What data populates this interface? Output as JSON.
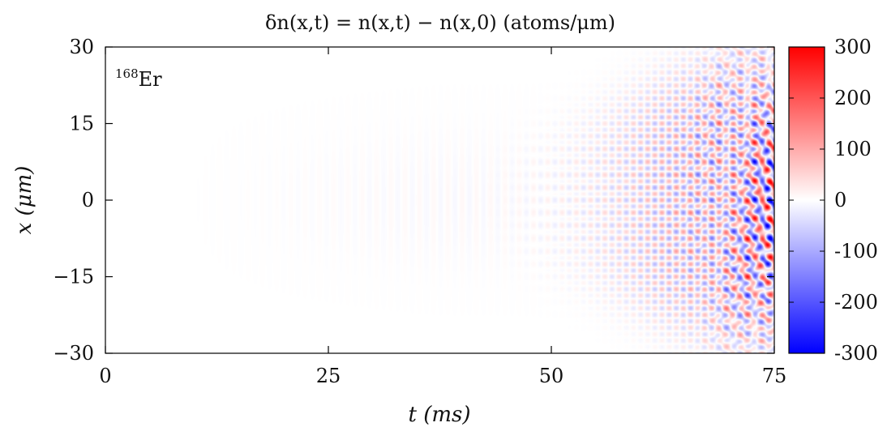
{
  "chart_data": {
    "type": "heatmap",
    "title": "δn(x,t) = n(x,t) − n(x,0)   (atoms/μm)",
    "xlabel": "t (ms)",
    "ylabel": "x (μm)",
    "annotation": "168Er",
    "annotation_parts": {
      "sup": "168",
      "base": "Er"
    },
    "xlim": [
      0,
      75
    ],
    "ylim": [
      -30,
      30
    ],
    "xticks": [
      0,
      25,
      50,
      75
    ],
    "xtick_labels": [
      "0",
      "25",
      "50",
      "75"
    ],
    "yticks": [
      30,
      15,
      0,
      -15,
      -30
    ],
    "ytick_labels": [
      "30",
      "15",
      "0",
      "−15",
      "−30"
    ],
    "colorbar": {
      "range": [
        -300,
        300
      ],
      "ticks": [
        300,
        200,
        100,
        0,
        -100,
        -200,
        -300
      ],
      "tick_labels": [
        "300",
        "200",
        "100",
        "0",
        "-100",
        "-200",
        "-300"
      ],
      "color_low": "#0000ff",
      "color_mid": "#ffffff",
      "color_high": "#ff0000"
    },
    "description_of_field": {
      "onset_t_ms": 40,
      "spatial_stripes_period_um": 2.5,
      "temporal_period_ms": 1.6,
      "max_amplitude": 300
    }
  }
}
